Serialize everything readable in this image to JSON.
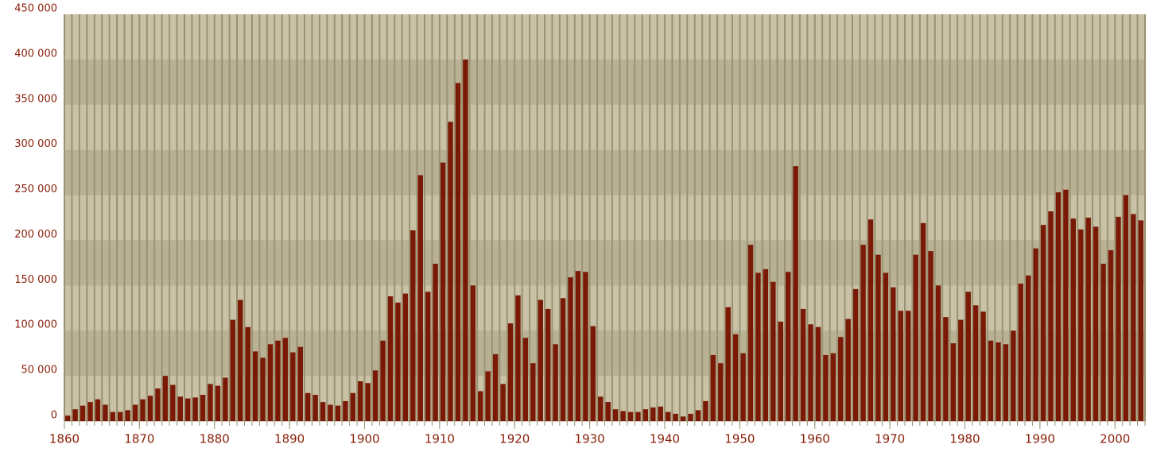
{
  "chart_data": {
    "type": "bar",
    "color": "#7a1a06",
    "x": [
      1860,
      1861,
      1862,
      1863,
      1864,
      1865,
      1866,
      1867,
      1868,
      1869,
      1870,
      1871,
      1872,
      1873,
      1874,
      1875,
      1876,
      1877,
      1878,
      1879,
      1880,
      1881,
      1882,
      1883,
      1884,
      1885,
      1886,
      1887,
      1888,
      1889,
      1890,
      1891,
      1892,
      1893,
      1894,
      1895,
      1896,
      1897,
      1898,
      1899,
      1900,
      1901,
      1902,
      1903,
      1904,
      1905,
      1906,
      1907,
      1908,
      1909,
      1910,
      1911,
      1912,
      1913,
      1914,
      1915,
      1916,
      1917,
      1918,
      1919,
      1920,
      1921,
      1922,
      1923,
      1924,
      1925,
      1926,
      1927,
      1928,
      1929,
      1930,
      1931,
      1932,
      1933,
      1934,
      1935,
      1936,
      1937,
      1938,
      1939,
      1940,
      1941,
      1942,
      1943,
      1944,
      1945,
      1946,
      1947,
      1948,
      1949,
      1950,
      1951,
      1952,
      1953,
      1954,
      1955,
      1956,
      1957,
      1958,
      1959,
      1960,
      1961,
      1962,
      1963,
      1964,
      1965,
      1966,
      1967,
      1968,
      1969,
      1970,
      1971,
      1972,
      1973,
      1974,
      1975,
      1976,
      1977,
      1978,
      1979,
      1980,
      1981,
      1982,
      1983,
      1984,
      1985,
      1986,
      1987,
      1988,
      1989,
      1990,
      1991,
      1992,
      1993,
      1994,
      1995,
      1996,
      1997,
      1998,
      1999,
      2000,
      2001,
      2002,
      2003
    ],
    "values": [
      6000,
      13000,
      17000,
      21000,
      24000,
      18000,
      10000,
      10000,
      12000,
      18000,
      24000,
      28000,
      36000,
      50000,
      40000,
      27000,
      25000,
      26000,
      29000,
      41000,
      39000,
      48000,
      112000,
      134000,
      104000,
      77000,
      70000,
      85000,
      89000,
      92000,
      76000,
      82000,
      31000,
      29000,
      21000,
      18000,
      17000,
      22000,
      31000,
      44000,
      42000,
      56000,
      89000,
      138000,
      131000,
      141000,
      211000,
      272000,
      143000,
      174000,
      286000,
      331000,
      374000,
      400000,
      150000,
      33000,
      55000,
      74000,
      41000,
      108000,
      139000,
      92000,
      64000,
      134000,
      124000,
      85000,
      136000,
      159000,
      166000,
      165000,
      105000,
      27000,
      21000,
      13000,
      11000,
      10000,
      10000,
      13000,
      15000,
      16000,
      10000,
      8000,
      5000,
      8000,
      12000,
      22000,
      73000,
      64000,
      126000,
      96000,
      75000,
      195000,
      164000,
      168000,
      154000,
      110000,
      165000,
      282000,
      124000,
      107000,
      104000,
      73000,
      75000,
      93000,
      113000,
      146000,
      195000,
      223000,
      184000,
      164000,
      148000,
      122000,
      122000,
      184000,
      219000,
      188000,
      150000,
      115000,
      86000,
      112000,
      143000,
      128000,
      121000,
      89000,
      87000,
      85000,
      100000,
      152000,
      161000,
      191000,
      217000,
      232000,
      253000,
      256000,
      224000,
      212000,
      225000,
      215000,
      174000,
      189000,
      226000,
      250000,
      229000,
      222000
    ],
    "xlim": [
      1860,
      2004
    ],
    "xticks": [
      1860,
      1870,
      1880,
      1890,
      1900,
      1910,
      1920,
      1930,
      1940,
      1950,
      1960,
      1970,
      1980,
      1990,
      2000
    ],
    "ylim": [
      0,
      450000
    ],
    "yticks": [
      0,
      {
        "value": 50000,
        "label": "50 000"
      },
      {
        "value": 100000,
        "label": "100 000"
      },
      {
        "value": 150000,
        "label": "150 000"
      },
      {
        "value": 200000,
        "label": "200 000"
      },
      {
        "value": 250000,
        "label": "250 000"
      },
      {
        "value": 300000,
        "label": "300 000"
      },
      {
        "value": 350000,
        "label": "350 000"
      },
      {
        "value": 400000,
        "label": "400 000"
      },
      {
        "value": 450000,
        "label": "450 000"
      }
    ],
    "grid": true
  }
}
